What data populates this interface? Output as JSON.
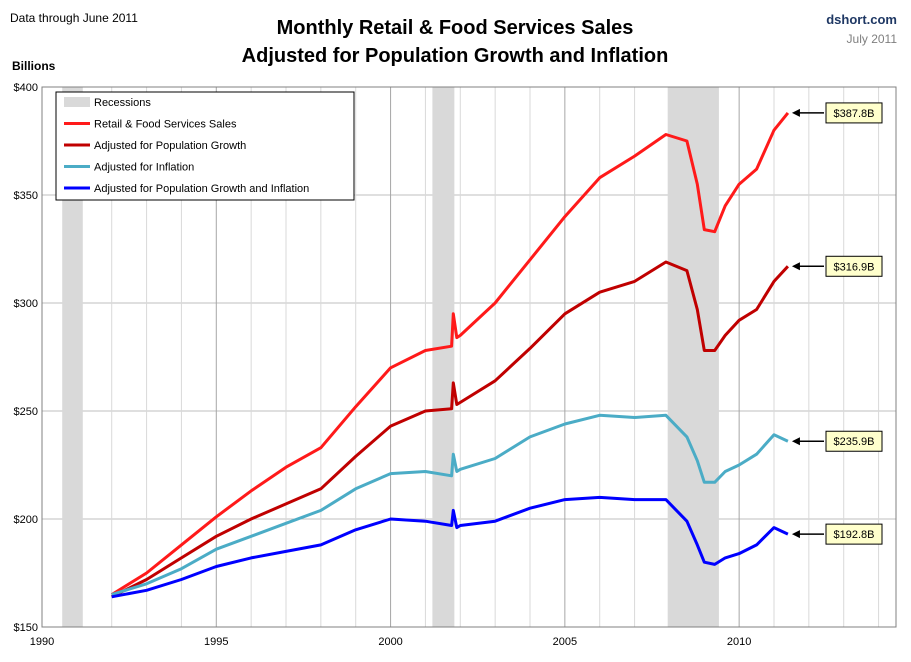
{
  "header": {
    "note": "Data through June 2011",
    "title_line1": "Monthly Retail & Food Services Sales",
    "title_line2": "Adjusted for Population Growth and Inflation",
    "source": "dshort.com",
    "date": "July 2011",
    "units": "Billions"
  },
  "chart_data": {
    "type": "line",
    "title": "Monthly Retail & Food Services Sales Adjusted for Population Growth and Inflation",
    "ylabel": "Billions",
    "xlim": [
      1990,
      2014.5
    ],
    "ylim": [
      150,
      400
    ],
    "x_ticks": [
      1990,
      1995,
      2000,
      2005,
      2010
    ],
    "y_ticks": [
      150,
      200,
      250,
      300,
      350,
      400
    ],
    "y_tick_labels": [
      "$150",
      "$200",
      "$250",
      "$300",
      "$350",
      "$400"
    ],
    "grid": true,
    "legend_position": "top-left",
    "recessions": [
      [
        1990.58,
        1991.17
      ],
      [
        2001.2,
        2001.83
      ],
      [
        2007.95,
        2009.42
      ]
    ],
    "recession_label": "Recessions",
    "recession_color": "#d9d9d9",
    "series": [
      {
        "name": "Retail & Food Services Sales",
        "color": "#ff1a1a",
        "end_label": "$387.8B",
        "x": [
          1992.0,
          1993.0,
          1994.0,
          1995.0,
          1996.0,
          1997.0,
          1998.0,
          1999.0,
          2000.0,
          2001.0,
          2001.75,
          2001.8,
          2001.9,
          2002.0,
          2003.0,
          2004.0,
          2005.0,
          2006.0,
          2007.0,
          2007.9,
          2008.5,
          2008.8,
          2009.0,
          2009.3,
          2009.6,
          2010.0,
          2010.5,
          2011.0,
          2011.4
        ],
        "values": [
          165,
          175,
          188,
          201,
          213,
          224,
          233,
          252,
          270,
          278,
          280,
          295,
          284,
          285,
          300,
          320,
          340,
          358,
          368,
          378,
          375,
          355,
          334,
          333,
          345,
          355,
          362,
          380,
          388
        ]
      },
      {
        "name": "Adjusted for Population Growth",
        "color": "#c00000",
        "end_label": "$316.9B",
        "x": [
          1992.0,
          1993.0,
          1994.0,
          1995.0,
          1996.0,
          1997.0,
          1998.0,
          1999.0,
          2000.0,
          2001.0,
          2001.75,
          2001.8,
          2001.9,
          2002.0,
          2003.0,
          2004.0,
          2005.0,
          2006.0,
          2007.0,
          2007.9,
          2008.5,
          2008.8,
          2009.0,
          2009.3,
          2009.6,
          2010.0,
          2010.5,
          2011.0,
          2011.4
        ],
        "values": [
          164,
          172,
          182,
          192,
          200,
          207,
          214,
          229,
          243,
          250,
          251,
          263,
          253,
          254,
          264,
          279,
          295,
          305,
          310,
          319,
          315,
          297,
          278,
          278,
          285,
          292,
          297,
          310,
          317
        ]
      },
      {
        "name": "Adjusted for Inflation",
        "color": "#4bacc6",
        "end_label": "$235.9B",
        "x": [
          1992.0,
          1993.0,
          1994.0,
          1995.0,
          1996.0,
          1997.0,
          1998.0,
          1999.0,
          2000.0,
          2001.0,
          2001.75,
          2001.8,
          2001.9,
          2002.0,
          2003.0,
          2004.0,
          2005.0,
          2006.0,
          2007.0,
          2007.9,
          2008.5,
          2008.8,
          2009.0,
          2009.3,
          2009.6,
          2010.0,
          2010.5,
          2011.0,
          2011.4
        ],
        "values": [
          165,
          170,
          177,
          186,
          192,
          198,
          204,
          214,
          221,
          222,
          220,
          230,
          222,
          223,
          228,
          238,
          244,
          248,
          247,
          248,
          238,
          227,
          217,
          217,
          222,
          225,
          230,
          239,
          236
        ]
      },
      {
        "name": "Adjusted for Population Growth and Inflation",
        "color": "#0000ff",
        "end_label": "$192.8B",
        "x": [
          1992.0,
          1993.0,
          1994.0,
          1995.0,
          1996.0,
          1997.0,
          1998.0,
          1999.0,
          2000.0,
          2001.0,
          2001.75,
          2001.8,
          2001.9,
          2002.0,
          2003.0,
          2004.0,
          2005.0,
          2006.0,
          2007.0,
          2007.9,
          2008.5,
          2008.8,
          2009.0,
          2009.3,
          2009.6,
          2010.0,
          2010.5,
          2011.0,
          2011.4
        ],
        "values": [
          164,
          167,
          172,
          178,
          182,
          185,
          188,
          195,
          200,
          199,
          197,
          204,
          196,
          197,
          199,
          205,
          209,
          210,
          209,
          209,
          199,
          188,
          180,
          179,
          182,
          184,
          188,
          196,
          193
        ]
      }
    ]
  }
}
